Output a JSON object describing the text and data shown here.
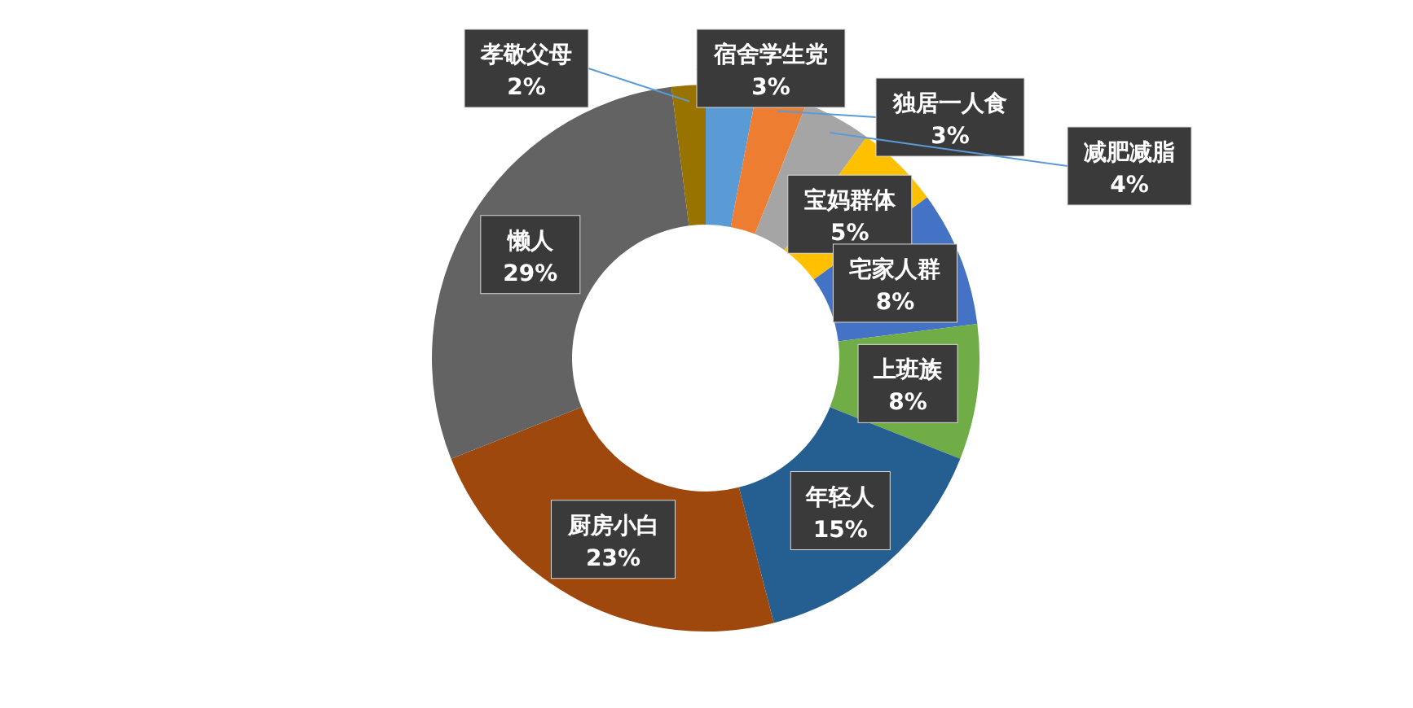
{
  "chart_data": {
    "type": "donut",
    "categories": [
      "宿舍学生党",
      "独居一人食",
      "减肥减脂",
      "宝妈群体",
      "宅家人群",
      "上班族",
      "年轻人",
      "厨房小白",
      "懒人",
      "孝敬父母"
    ],
    "values": [
      3,
      3,
      4,
      5,
      8,
      8,
      15,
      23,
      29,
      2
    ],
    "value_labels": [
      "3%",
      "3%",
      "4%",
      "5%",
      "8%",
      "8%",
      "15%",
      "23%",
      "29%",
      "2%"
    ],
    "colors": [
      "#5b9bd5",
      "#ed7d31",
      "#a5a5a5",
      "#ffc000",
      "#4472c4",
      "#70ad47",
      "#255e91",
      "#9e480e",
      "#636363",
      "#997300"
    ],
    "legend": false
  }
}
